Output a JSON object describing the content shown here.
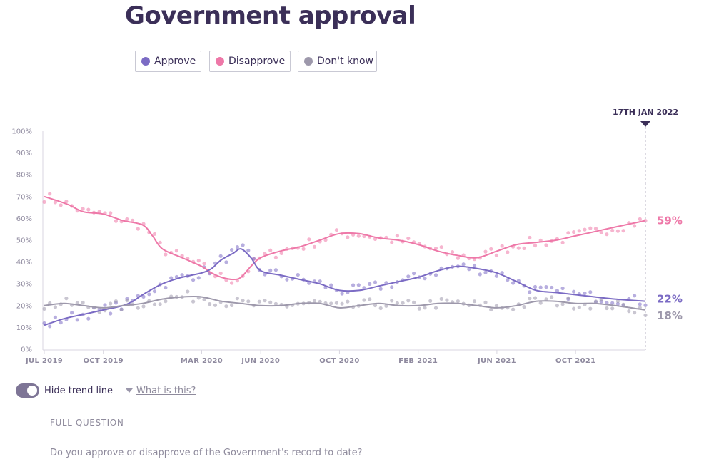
{
  "title": "Government approval",
  "legend": {
    "approve": {
      "label": "Approve",
      "color": "#7b6bc4"
    },
    "disapprove": {
      "label": "Disapprove",
      "color": "#ee78a8"
    },
    "dontknow": {
      "label": "Don't know",
      "color": "#9d98ab"
    }
  },
  "toggle": {
    "label": "Hide trend line",
    "on": true
  },
  "what_link": "What is this?",
  "full_question": {
    "label": "FULL QUESTION",
    "text": "Do you approve or disapprove of the Government's record to date?"
  },
  "chart_data": {
    "type": "line",
    "title": "Government approval",
    "ylabel": "",
    "xlabel": "",
    "ylim": [
      0,
      100
    ],
    "yticks": [
      "0%",
      "10%",
      "20%",
      "30%",
      "40%",
      "50%",
      "60%",
      "70%",
      "80%",
      "90%",
      "100%"
    ],
    "xticks": [
      {
        "label": "JUL 2019",
        "t": 0
      },
      {
        "label": "OCT 2019",
        "t": 3
      },
      {
        "label": "MAR 2020",
        "t": 8
      },
      {
        "label": "JUN 2020",
        "t": 11
      },
      {
        "label": "OCT 2020",
        "t": 15
      },
      {
        "label": "FEB 2021",
        "t": 19
      },
      {
        "label": "JUN 2021",
        "t": 23
      },
      {
        "label": "OCT 2021",
        "t": 27
      }
    ],
    "x_unit": "months since Jul 2019",
    "x_range": [
      0,
      30.55
    ],
    "marker": {
      "label": "17TH JAN 2022",
      "t": 30.55
    },
    "trend_series": [
      {
        "name": "Disapprove",
        "color": "#ee78a8",
        "end_label": "59%",
        "points": [
          [
            0,
            70
          ],
          [
            0.7,
            68
          ],
          [
            1.3,
            66
          ],
          [
            2,
            63
          ],
          [
            3,
            62
          ],
          [
            4,
            59
          ],
          [
            5,
            57
          ],
          [
            5.5,
            52
          ],
          [
            6,
            46
          ],
          [
            7,
            42
          ],
          [
            8,
            38
          ],
          [
            8.5,
            35
          ],
          [
            9,
            33
          ],
          [
            9.6,
            32
          ],
          [
            10,
            33
          ],
          [
            10.5,
            38
          ],
          [
            11,
            42
          ],
          [
            12,
            45
          ],
          [
            13,
            47
          ],
          [
            14,
            50
          ],
          [
            15,
            53
          ],
          [
            16,
            53
          ],
          [
            17,
            51
          ],
          [
            18,
            50
          ],
          [
            19,
            48
          ],
          [
            20,
            45
          ],
          [
            21,
            43
          ],
          [
            22,
            42
          ],
          [
            23,
            45
          ],
          [
            24,
            48
          ],
          [
            25,
            49
          ],
          [
            26,
            50
          ],
          [
            27,
            52
          ],
          [
            28,
            54
          ],
          [
            29,
            56
          ],
          [
            30.55,
            59
          ]
        ]
      },
      {
        "name": "Approve",
        "color": "#7b6bc4",
        "end_label": "22%",
        "points": [
          [
            0,
            11
          ],
          [
            1,
            14
          ],
          [
            2,
            16
          ],
          [
            3,
            18
          ],
          [
            4,
            20
          ],
          [
            4.5,
            22
          ],
          [
            5,
            25
          ],
          [
            6,
            30
          ],
          [
            7,
            33
          ],
          [
            8,
            35
          ],
          [
            8.5,
            37
          ],
          [
            9,
            41
          ],
          [
            9.6,
            44
          ],
          [
            10,
            46
          ],
          [
            10.5,
            42
          ],
          [
            11,
            36
          ],
          [
            12,
            34
          ],
          [
            13,
            32
          ],
          [
            14,
            30
          ],
          [
            15,
            27
          ],
          [
            16,
            27
          ],
          [
            17,
            29
          ],
          [
            18,
            31
          ],
          [
            19,
            33
          ],
          [
            20,
            36
          ],
          [
            21,
            38
          ],
          [
            22,
            37
          ],
          [
            23,
            35
          ],
          [
            24,
            31
          ],
          [
            25,
            27
          ],
          [
            26,
            26
          ],
          [
            27,
            25
          ],
          [
            28,
            24
          ],
          [
            29,
            23
          ],
          [
            30.55,
            22
          ]
        ]
      },
      {
        "name": "Don't know",
        "color": "#9d98ab",
        "end_label": "18%",
        "points": [
          [
            0,
            20
          ],
          [
            1,
            21
          ],
          [
            2,
            20
          ],
          [
            3,
            19
          ],
          [
            4,
            20
          ],
          [
            5,
            21
          ],
          [
            6,
            23
          ],
          [
            7,
            24
          ],
          [
            8,
            24
          ],
          [
            9,
            22
          ],
          [
            10,
            21
          ],
          [
            11,
            20
          ],
          [
            12,
            20
          ],
          [
            13,
            21
          ],
          [
            14,
            21
          ],
          [
            15,
            19
          ],
          [
            16,
            20
          ],
          [
            17,
            21
          ],
          [
            18,
            20
          ],
          [
            19,
            20
          ],
          [
            20,
            21
          ],
          [
            21,
            21
          ],
          [
            22,
            20
          ],
          [
            23,
            19
          ],
          [
            24,
            20
          ],
          [
            25,
            22
          ],
          [
            26,
            22
          ],
          [
            27,
            21
          ],
          [
            28,
            21
          ],
          [
            29,
            20
          ],
          [
            30.55,
            18
          ]
        ]
      }
    ]
  }
}
